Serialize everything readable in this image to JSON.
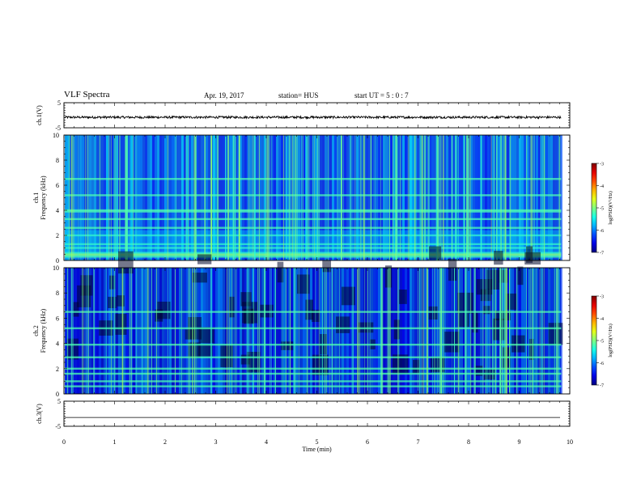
{
  "header": {
    "title": "VLF Spectra",
    "date": "Apr. 19, 2017",
    "station": "station= HUS",
    "start": "start  UT =   5 : 0  : 7"
  },
  "chart_data": [
    {
      "type": "line",
      "ylabel": "ch.1(V)",
      "ylim": [
        -5,
        5
      ],
      "yticks": [
        5,
        -5
      ],
      "xlim": [
        0,
        10
      ],
      "level": -0.8
    },
    {
      "type": "heatmap",
      "ylabel": "Frequency (kHz)",
      "panel_label": "ch.1",
      "xlim": [
        0,
        10
      ],
      "ylim": [
        0,
        10
      ],
      "yticks": [
        0,
        2,
        4,
        6,
        8,
        10
      ],
      "data_end_min": 9.83,
      "colorbar": {
        "label": "log(PSD)(V²/Hz)",
        "range": [
          -7,
          -3
        ],
        "ticks": [
          -3,
          -4,
          -5,
          -6,
          -7
        ]
      },
      "bands_khz": [
        0.3,
        0.6,
        1.0,
        1.3,
        2.0,
        2.6,
        3.3,
        3.9,
        4.0,
        5.2,
        6.5
      ]
    },
    {
      "type": "heatmap",
      "ylabel": "Frequency (kHz)",
      "panel_label": "ch.2",
      "xlim": [
        0,
        10
      ],
      "ylim": [
        0,
        10
      ],
      "yticks": [
        0,
        2,
        4,
        6,
        8,
        10
      ],
      "data_end_min": 9.83,
      "colorbar": {
        "label": "log(PSD)(V²/Hz)",
        "range": [
          -7,
          -3
        ],
        "ticks": [
          -3,
          -4,
          -5,
          -6,
          -7
        ]
      },
      "bands_khz": [
        0.6,
        1.0,
        1.6,
        2.0,
        2.9,
        3.9,
        5.2,
        6.5
      ]
    },
    {
      "type": "line",
      "ylabel": "ch.3(V)",
      "ylim": [
        -5,
        5
      ],
      "yticks": [
        5,
        -5
      ],
      "xlim": [
        0,
        10
      ],
      "level": -1.5,
      "xlabel": "Time (min)",
      "xticks": [
        0,
        1,
        2,
        3,
        4,
        5,
        6,
        7,
        8,
        9,
        10
      ]
    }
  ]
}
